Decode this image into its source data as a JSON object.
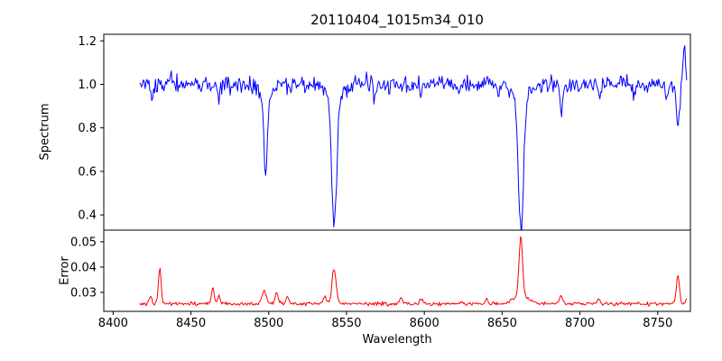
{
  "chart_data": {
    "type": "line",
    "title": "20110404_1015m34_010",
    "xlabel": "Wavelength",
    "grid": false,
    "legend": "none",
    "xlim": [
      8394,
      8771
    ],
    "xticks": [
      8400,
      8450,
      8500,
      8550,
      8600,
      8650,
      8700,
      8750
    ],
    "xtick_labels": [
      "8400",
      "8450",
      "8500",
      "8550",
      "8600",
      "8650",
      "8700",
      "8750"
    ],
    "panels": [
      {
        "name": "spectrum",
        "type": "line",
        "color": "#0000ff",
        "ylabel": "Spectrum",
        "ylim": [
          0.33,
          1.23
        ],
        "yticks": [
          0.4,
          0.6,
          0.8,
          1.0,
          1.2
        ],
        "ytick_labels": [
          "0.4",
          "0.6",
          "0.8",
          "1.0",
          "1.2"
        ],
        "x_start": 8417,
        "x_end": 8769,
        "x_step": 0.6,
        "baseline": 1.0,
        "noise_sigma": 0.019,
        "noise_seed": 20110404,
        "absorption_lines": [
          [
            8425,
            0.06,
            0.8
          ],
          [
            8468,
            0.09,
            0.8
          ],
          [
            8498,
            0.37,
            1.2
          ],
          [
            8498,
            0.04,
            4
          ],
          [
            8514,
            0.05,
            0.8
          ],
          [
            8542.1,
            0.58,
            1.6
          ],
          [
            8542.1,
            0.07,
            5
          ],
          [
            8568,
            0.07,
            0.8
          ],
          [
            8598,
            0.05,
            0.8
          ],
          [
            8621,
            0.04,
            0.8
          ],
          [
            8648,
            0.05,
            0.8
          ],
          [
            8662.1,
            0.6,
            1.6
          ],
          [
            8662.1,
            0.07,
            5
          ],
          [
            8688,
            0.13,
            0.9
          ],
          [
            8712,
            0.05,
            0.8
          ],
          [
            8735,
            0.04,
            0.8
          ],
          [
            8756,
            0.06,
            0.8
          ],
          [
            8763,
            0.2,
            1.0
          ]
        ],
        "emission_lines": [
          [
            8437,
            0.06,
            0.7
          ],
          [
            8767,
            0.17,
            0.8
          ]
        ]
      },
      {
        "name": "error",
        "type": "line",
        "color": "#ff0000",
        "ylabel": "Error",
        "ylim": [
          0.0225,
          0.0546
        ],
        "yticks": [
          0.03,
          0.04,
          0.05
        ],
        "ytick_labels": [
          "0.03",
          "0.04",
          "0.05"
        ],
        "x_start": 8417,
        "x_end": 8769,
        "x_step": 0.6,
        "baseline": 0.0255,
        "noise_sigma": 0.00035,
        "noise_seed": 1015,
        "spikes": [
          [
            8424,
            0.0035,
            0.8
          ],
          [
            8430,
            0.0135,
            0.9
          ],
          [
            8464,
            0.0065,
            0.9
          ],
          [
            8468,
            0.0035,
            0.8
          ],
          [
            8497,
            0.005,
            1.4
          ],
          [
            8505,
            0.0042,
            1.0
          ],
          [
            8512,
            0.003,
            0.9
          ],
          [
            8536,
            0.003,
            1.0
          ],
          [
            8542,
            0.014,
            1.3
          ],
          [
            8585,
            0.002,
            1.0
          ],
          [
            8598,
            0.0022,
            0.9
          ],
          [
            8640,
            0.0018,
            0.9
          ],
          [
            8662,
            0.0235,
            1.1
          ],
          [
            8662,
            0.0035,
            4.5
          ],
          [
            8688,
            0.0032,
            1.0
          ],
          [
            8712,
            0.002,
            0.9
          ],
          [
            8763,
            0.011,
            1.0
          ],
          [
            8770,
            0.0075,
            0.9
          ]
        ]
      }
    ]
  }
}
